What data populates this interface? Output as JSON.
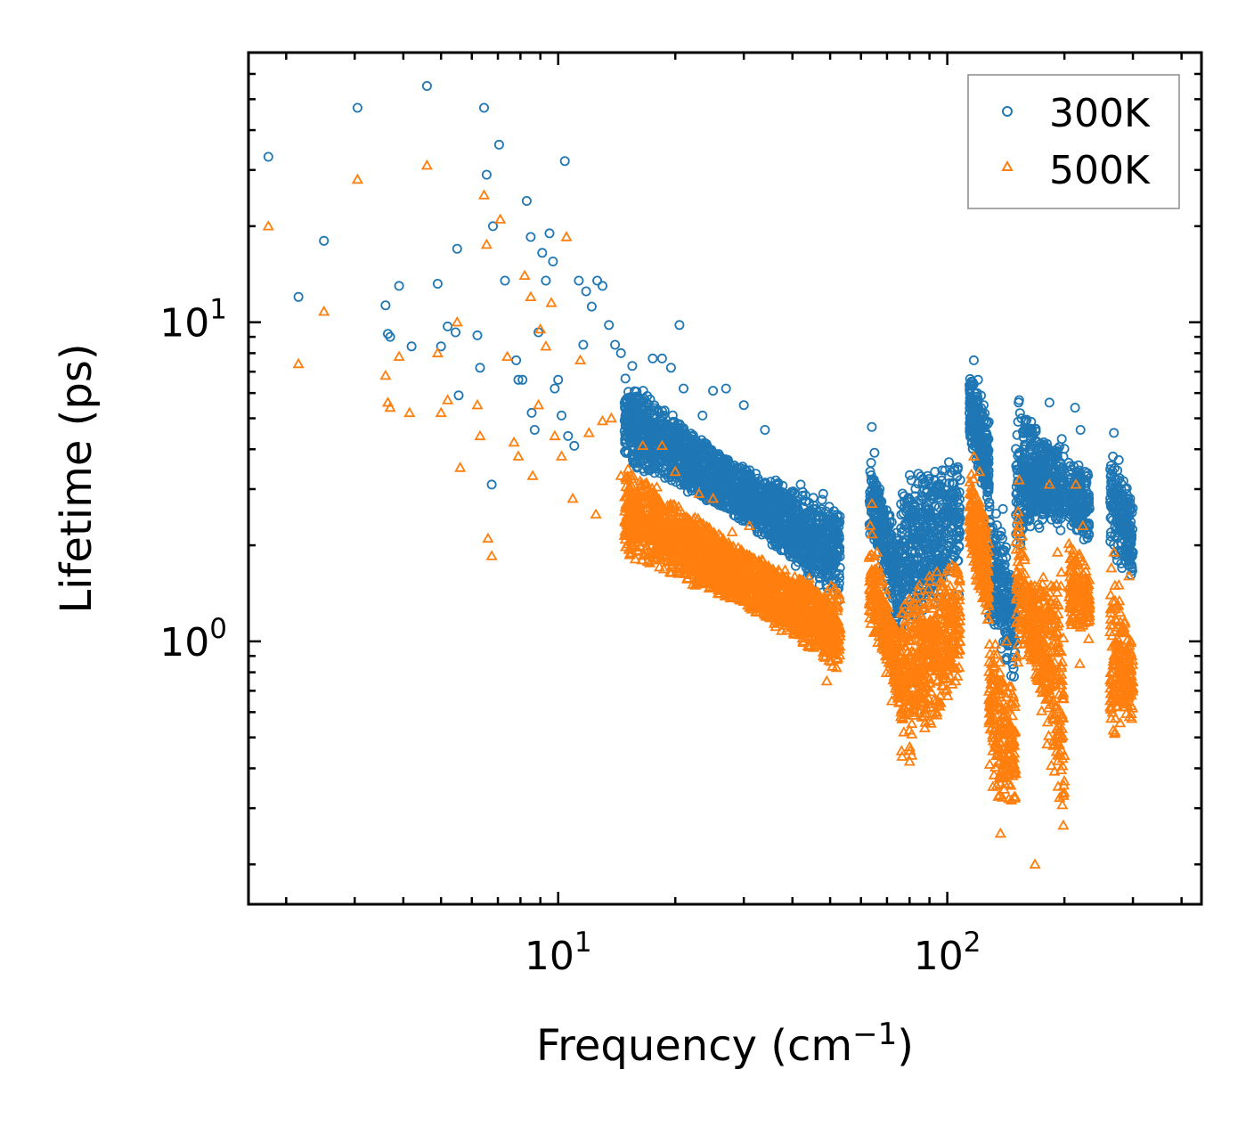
{
  "chart_data": {
    "type": "scatter",
    "title": "",
    "xlabel": "Frequency (cm",
    "xlabel_sup": "−1",
    "xlabel_close": ")",
    "ylabel": "Lifetime (ps)",
    "xscale": "log",
    "yscale": "log",
    "xlim": [
      1.6,
      450
    ],
    "ylim": [
      0.15,
      70
    ],
    "x_ticks": [
      {
        "value": 10,
        "base": "10",
        "exp": "1"
      },
      {
        "value": 100,
        "base": "10",
        "exp": "2"
      }
    ],
    "y_ticks": [
      {
        "value": 1,
        "base": "10",
        "exp": "0"
      },
      {
        "value": 10,
        "base": "10",
        "exp": "1"
      }
    ],
    "legend_position": "top-right",
    "series": [
      {
        "name": "300K",
        "color": "#1f77b4",
        "marker": "circle",
        "points": [
          [
            1.8,
            33
          ],
          [
            2.15,
            12
          ],
          [
            2.5,
            18
          ],
          [
            3.05,
            47
          ],
          [
            3.6,
            11.3
          ],
          [
            3.65,
            9.2
          ],
          [
            3.7,
            9
          ],
          [
            3.9,
            13
          ],
          [
            4.2,
            8.4
          ],
          [
            4.6,
            55
          ],
          [
            4.9,
            13.2
          ],
          [
            5.0,
            8.4
          ],
          [
            5.2,
            9.7
          ],
          [
            5.45,
            9.3
          ],
          [
            5.5,
            17
          ],
          [
            5.55,
            5.9
          ],
          [
            6.2,
            9.1
          ],
          [
            6.3,
            7.2
          ],
          [
            6.45,
            47
          ],
          [
            6.55,
            29
          ],
          [
            6.8,
            20
          ],
          [
            6.75,
            3.1
          ],
          [
            7.05,
            36
          ],
          [
            7.3,
            13.5
          ],
          [
            7.8,
            7.6
          ],
          [
            7.9,
            6.6
          ],
          [
            8.1,
            6.6
          ],
          [
            8.3,
            24
          ],
          [
            8.5,
            18.5
          ],
          [
            8.55,
            5.2
          ],
          [
            8.7,
            4.6
          ],
          [
            8.9,
            9.3
          ],
          [
            9.1,
            16.5
          ],
          [
            9.3,
            13.5
          ],
          [
            9.5,
            19
          ],
          [
            9.7,
            15.5
          ],
          [
            9.8,
            6.2
          ],
          [
            10.0,
            6.6
          ],
          [
            10.2,
            5.1
          ],
          [
            10.4,
            32
          ],
          [
            10.6,
            4.4
          ],
          [
            11.0,
            4.1
          ],
          [
            11.3,
            13.5
          ],
          [
            11.6,
            8.5
          ],
          [
            11.8,
            12.5
          ],
          [
            12.2,
            11.2
          ],
          [
            12.6,
            13.5
          ],
          [
            13.0,
            13
          ],
          [
            13.5,
            9.8
          ],
          [
            14.0,
            8.5
          ],
          [
            14.5,
            8
          ],
          [
            15.5,
            7.3
          ],
          [
            16.0,
            5.8
          ],
          [
            17.5,
            7.7
          ],
          [
            18.5,
            7.7
          ],
          [
            19.5,
            7.2
          ],
          [
            20.5,
            9.8
          ],
          [
            21.0,
            6.2
          ],
          [
            23.5,
            5.1
          ],
          [
            25.0,
            6.1
          ],
          [
            27.0,
            6.2
          ],
          [
            30.0,
            5.5
          ],
          [
            34.0,
            4.6
          ],
          [
            42.0,
            3.1
          ],
          [
            48.0,
            2.9
          ],
          [
            51.0,
            2.0
          ],
          [
            53.0,
            1.7
          ],
          [
            64.0,
            4.7
          ],
          [
            65.0,
            3.9
          ],
          [
            67.0,
            3.0
          ],
          [
            70.0,
            2.0
          ],
          [
            73.0,
            1.6
          ],
          [
            75.0,
            1.05
          ],
          [
            79.0,
            1.6
          ],
          [
            82.0,
            1.8
          ],
          [
            86.0,
            2.5
          ],
          [
            89.0,
            3.3
          ],
          [
            93.0,
            3.4
          ],
          [
            97.0,
            2.5
          ],
          [
            103.0,
            2.5
          ],
          [
            107.0,
            1.4
          ],
          [
            117.0,
            7.6
          ],
          [
            120.0,
            6.6
          ],
          [
            124.0,
            5.5
          ],
          [
            129.0,
            1.3
          ],
          [
            139.0,
            2.6
          ],
          [
            146.0,
            0.78
          ],
          [
            153.0,
            5.7
          ],
          [
            158.0,
            4.5
          ],
          [
            165.0,
            3.2
          ],
          [
            172.0,
            4.0
          ],
          [
            183.0,
            5.6
          ],
          [
            192.0,
            3.9
          ],
          [
            213.0,
            5.4
          ],
          [
            220.0,
            4.6
          ],
          [
            226.0,
            3.4
          ],
          [
            268.0,
            4.5
          ],
          [
            276.0,
            3.7
          ],
          [
            295.0,
            2.8
          ],
          [
            300.0,
            1.9
          ]
        ]
      },
      {
        "name": "500K",
        "color": "#ff7f0e",
        "marker": "triangle",
        "points": [
          [
            1.8,
            20
          ],
          [
            2.15,
            7.4
          ],
          [
            2.5,
            10.8
          ],
          [
            3.05,
            28
          ],
          [
            3.6,
            6.8
          ],
          [
            3.65,
            5.6
          ],
          [
            3.7,
            5.4
          ],
          [
            3.9,
            7.8
          ],
          [
            4.15,
            5.2
          ],
          [
            4.6,
            31
          ],
          [
            4.9,
            8
          ],
          [
            5.0,
            5.2
          ],
          [
            5.2,
            5.7
          ],
          [
            5.5,
            10
          ],
          [
            5.6,
            3.5
          ],
          [
            6.2,
            5.5
          ],
          [
            6.3,
            4.4
          ],
          [
            6.45,
            25
          ],
          [
            6.55,
            17.5
          ],
          [
            6.6,
            2.1
          ],
          [
            6.75,
            1.85
          ],
          [
            7.1,
            21
          ],
          [
            7.4,
            7.8
          ],
          [
            7.7,
            4.2
          ],
          [
            7.9,
            3.8
          ],
          [
            8.2,
            14
          ],
          [
            8.5,
            12
          ],
          [
            8.6,
            3.3
          ],
          [
            8.9,
            5.5
          ],
          [
            9.0,
            9.5
          ],
          [
            9.3,
            8.4
          ],
          [
            9.6,
            11.5
          ],
          [
            9.8,
            4.4
          ],
          [
            10.2,
            3.8
          ],
          [
            10.5,
            18.5
          ],
          [
            10.9,
            2.8
          ],
          [
            11.4,
            7.6
          ],
          [
            12.0,
            4.5
          ],
          [
            12.5,
            2.5
          ],
          [
            13.0,
            4.9
          ],
          [
            13.7,
            5
          ],
          [
            14.5,
            3.3
          ],
          [
            15.5,
            2.6
          ],
          [
            16.5,
            4.1
          ],
          [
            17.5,
            2.8
          ],
          [
            18.5,
            4.1
          ],
          [
            20.0,
            3.4
          ],
          [
            21.5,
            2.0
          ],
          [
            23.0,
            2.9
          ],
          [
            25.0,
            2.8
          ],
          [
            28.0,
            2.2
          ],
          [
            31.0,
            2.3
          ],
          [
            34.0,
            1.4
          ],
          [
            40.0,
            1.5
          ],
          [
            46.0,
            1.2
          ],
          [
            49.0,
            0.75
          ],
          [
            53.0,
            1.1
          ],
          [
            64.0,
            2.7
          ],
          [
            66.0,
            1.9
          ],
          [
            69.0,
            1.2
          ],
          [
            72.0,
            0.65
          ],
          [
            76.0,
            0.58
          ],
          [
            80.0,
            0.42
          ],
          [
            86.0,
            0.58
          ],
          [
            90.0,
            1.6
          ],
          [
            94.0,
            1.65
          ],
          [
            100.0,
            1.3
          ],
          [
            105.0,
            0.75
          ],
          [
            117.0,
            3.8
          ],
          [
            121.0,
            3.4
          ],
          [
            125.0,
            2.2
          ],
          [
            131.0,
            0.35
          ],
          [
            137.0,
            0.25
          ],
          [
            142.0,
            1.0
          ],
          [
            153.0,
            3.2
          ],
          [
            158.0,
            1.8
          ],
          [
            164.0,
            1.5
          ],
          [
            168.0,
            0.2
          ],
          [
            173.0,
            0.9
          ],
          [
            183.0,
            3.1
          ],
          [
            192.0,
            1.9
          ],
          [
            214.0,
            3.1
          ],
          [
            219.0,
            0.85
          ],
          [
            223.0,
            2.3
          ],
          [
            268.0,
            1.9
          ],
          [
            272.0,
            0.65
          ],
          [
            276.0,
            1.5
          ],
          [
            293.0,
            1.6
          ],
          [
            298.0,
            0.9
          ]
        ]
      }
    ],
    "bands": [
      {
        "series": "300K",
        "x": [
          14.8,
          53.0
        ],
        "y0": [
          5.8,
          1.55
        ],
        "y1": [
          4.2,
          2.25
        ],
        "jitter": 0.16,
        "count": 1900
      },
      {
        "series": "300K",
        "x": [
          63.0,
          76.0
        ],
        "y0": [
          3.5,
          1.1
        ],
        "y1": [
          2.6,
          1.8
        ],
        "jitter": 0.18,
        "count": 280
      },
      {
        "series": "300K",
        "x": [
          76.0,
          108.0
        ],
        "y0": [
          1.2,
          2.0
        ],
        "y1": [
          2.8,
          3.0
        ],
        "jitter": 0.2,
        "count": 500
      },
      {
        "series": "300K",
        "x": [
          114.0,
          128.0
        ],
        "y0": [
          6.0,
          4.5
        ],
        "y1": [
          5.0,
          2.8
        ],
        "jitter": 0.14,
        "count": 260
      },
      {
        "series": "300K",
        "x": [
          128.0,
          150.0
        ],
        "y0": [
          1.3,
          0.9
        ],
        "y1": [
          2.4,
          1.4
        ],
        "jitter": 0.2,
        "count": 220
      },
      {
        "series": "300K",
        "x": [
          150.0,
          200.0
        ],
        "y0": [
          4.8,
          2.6
        ],
        "y1": [
          2.3,
          3.6
        ],
        "jitter": 0.22,
        "count": 420
      },
      {
        "series": "300K",
        "x": [
          205.0,
          232.0
        ],
        "y0": [
          3.2,
          2.9
        ],
        "y1": [
          2.7,
          2.3
        ],
        "jitter": 0.16,
        "count": 160
      },
      {
        "series": "300K",
        "x": [
          262.0,
          300.0
        ],
        "y0": [
          3.6,
          2.4
        ],
        "y1": [
          2.2,
          1.9
        ],
        "jitter": 0.18,
        "count": 200
      },
      {
        "series": "500K",
        "x": [
          14.8,
          53.0
        ],
        "y0": [
          3.0,
          0.95
        ],
        "y1": [
          2.2,
          1.2
        ],
        "jitter": 0.17,
        "count": 1900
      },
      {
        "series": "500K",
        "x": [
          63.0,
          76.0
        ],
        "y0": [
          1.9,
          0.75
        ],
        "y1": [
          1.3,
          0.8
        ],
        "jitter": 0.2,
        "count": 280
      },
      {
        "series": "500K",
        "x": [
          76.0,
          108.0
        ],
        "y0": [
          0.5,
          0.9
        ],
        "y1": [
          1.1,
          1.5
        ],
        "jitter": 0.22,
        "count": 500
      },
      {
        "series": "500K",
        "x": [
          114.0,
          128.0
        ],
        "y0": [
          3.0,
          2.0
        ],
        "y1": [
          2.3,
          1.2
        ],
        "jitter": 0.16,
        "count": 260
      },
      {
        "series": "500K",
        "x": [
          128.0,
          150.0
        ],
        "y0": [
          0.45,
          0.35
        ],
        "y1": [
          0.9,
          0.55
        ],
        "jitter": 0.22,
        "count": 220
      },
      {
        "series": "500K",
        "x": [
          150.0,
          200.0
        ],
        "y0": [
          2.2,
          0.3
        ],
        "y1": [
          1.0,
          1.5
        ],
        "jitter": 0.24,
        "count": 420
      },
      {
        "series": "500K",
        "x": [
          205.0,
          232.0
        ],
        "y0": [
          1.8,
          1.4
        ],
        "y1": [
          1.3,
          1.2
        ],
        "jitter": 0.16,
        "count": 160
      },
      {
        "series": "500K",
        "x": [
          262.0,
          300.0
        ],
        "y0": [
          1.5,
          0.8
        ],
        "y1": [
          0.6,
          0.7
        ],
        "jitter": 0.2,
        "count": 200
      }
    ]
  }
}
